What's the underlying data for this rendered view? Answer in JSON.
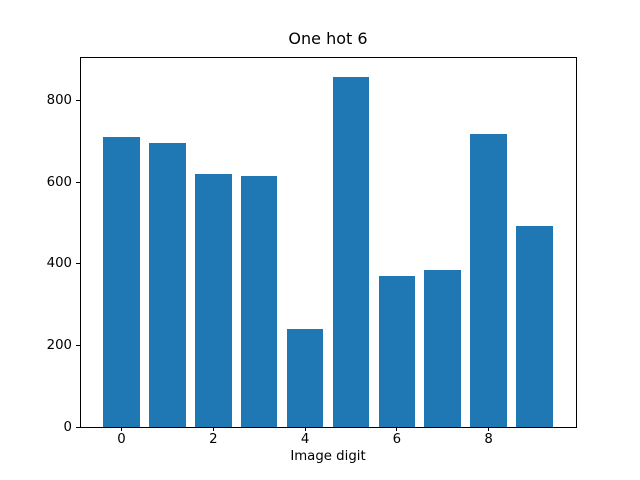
{
  "chart_data": {
    "type": "bar",
    "title": "One hot 6",
    "xlabel": "Image digit",
    "ylabel": "",
    "categories": [
      0,
      1,
      2,
      3,
      4,
      5,
      6,
      7,
      8,
      9
    ],
    "values": [
      710,
      696,
      620,
      614,
      240,
      857,
      370,
      385,
      718,
      494
    ],
    "xticks": [
      0,
      2,
      4,
      6,
      8
    ],
    "yticks": [
      0,
      200,
      400,
      600,
      800
    ],
    "xlim": [
      -0.905,
      9.905
    ],
    "ylim": [
      0,
      905
    ],
    "bar_width": 0.8,
    "bar_color": "#1f77b4",
    "grid": false,
    "legend": null
  }
}
